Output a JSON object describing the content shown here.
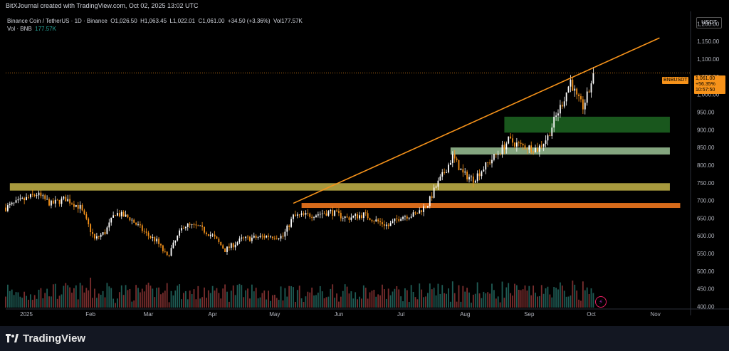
{
  "header": {
    "created_text": "BitXJournal created with TradingView.com, Oct 02, 2025 13:02 UTC"
  },
  "legend": {
    "symbol_desc": "Binance Coin / TetherUS · 1D · Binance",
    "open_label": "O",
    "open": "1,026.50",
    "high_label": "H",
    "high": "1,063.45",
    "low_label": "L",
    "low": "1,022.01",
    "close_label": "C",
    "close": "1,061.00",
    "change": "+34.50 (+3.36%)",
    "vol_label": "Vol",
    "vol": "177.57K",
    "vol_row_label": "Vol · BNB",
    "vol_row_value": "177.57K"
  },
  "currency": "USDT",
  "price_label": {
    "symbol": "BNBUSDT",
    "price": "1,061.00",
    "change_pct": "+56.35%",
    "countdown": "10:57:50"
  },
  "footer": {
    "brand": "TradingView"
  },
  "colors": {
    "up": "#26a69a",
    "down": "#ef5350",
    "trendline": "#f7931a"
  },
  "chart_data": {
    "type": "candlestick",
    "title": "",
    "ylim": [
      395,
      1235
    ],
    "y_ticks": [
      400,
      450,
      500,
      550,
      600,
      650,
      700,
      750,
      800,
      850,
      900,
      950,
      1000,
      1050,
      1100,
      1150,
      1200
    ],
    "y_tick_labels": [
      "400.00",
      "450.00",
      "500.00",
      "550.00",
      "600.00",
      "650.00",
      "700.00",
      "750.00",
      "800.00",
      "850.00",
      "900.00",
      "950.00",
      "1,000.00",
      "1,050.00",
      "1,100.00",
      "1,150.00",
      "1,200.00"
    ],
    "x_axis_labels": [
      {
        "label": "2025",
        "date": "2025-01-01"
      },
      {
        "label": "Feb",
        "date": "2025-02-01"
      },
      {
        "label": "Mar",
        "date": "2025-03-01"
      },
      {
        "label": "Apr",
        "date": "2025-04-01"
      },
      {
        "label": "May",
        "date": "2025-05-01"
      },
      {
        "label": "Jun",
        "date": "2025-06-01"
      },
      {
        "label": "Jul",
        "date": "2025-07-01"
      },
      {
        "label": "Aug",
        "date": "2025-08-01"
      },
      {
        "label": "Sep",
        "date": "2025-09-01"
      },
      {
        "label": "Oct",
        "date": "2025-10-01"
      },
      {
        "label": "Nov",
        "date": "2025-11-01"
      }
    ],
    "x_range": [
      "2024-12-22",
      "2025-11-18"
    ],
    "price_anchors": [
      [
        "2024-12-22",
        680
      ],
      [
        "2025-01-01",
        705
      ],
      [
        "2025-01-06",
        718
      ],
      [
        "2025-01-13",
        690
      ],
      [
        "2025-01-20",
        705
      ],
      [
        "2025-01-27",
        680
      ],
      [
        "2025-02-03",
        590
      ],
      [
        "2025-02-08",
        610
      ],
      [
        "2025-02-13",
        665
      ],
      [
        "2025-02-20",
        650
      ],
      [
        "2025-02-28",
        605
      ],
      [
        "2025-03-05",
        585
      ],
      [
        "2025-03-10",
        540
      ],
      [
        "2025-03-18",
        630
      ],
      [
        "2025-03-25",
        625
      ],
      [
        "2025-04-01",
        600
      ],
      [
        "2025-04-07",
        560
      ],
      [
        "2025-04-15",
        590
      ],
      [
        "2025-04-22",
        595
      ],
      [
        "2025-04-28",
        600
      ],
      [
        "2025-05-05",
        598
      ],
      [
        "2025-05-10",
        655
      ],
      [
        "2025-05-20",
        660
      ],
      [
        "2025-05-28",
        668
      ],
      [
        "2025-06-05",
        650
      ],
      [
        "2025-06-13",
        660
      ],
      [
        "2025-06-20",
        640
      ],
      [
        "2025-06-25",
        628
      ],
      [
        "2025-07-01",
        655
      ],
      [
        "2025-07-08",
        660
      ],
      [
        "2025-07-14",
        690
      ],
      [
        "2025-07-18",
        740
      ],
      [
        "2025-07-23",
        790
      ],
      [
        "2025-07-26",
        825
      ],
      [
        "2025-07-31",
        775
      ],
      [
        "2025-08-05",
        760
      ],
      [
        "2025-08-12",
        805
      ],
      [
        "2025-08-18",
        840
      ],
      [
        "2025-08-22",
        870
      ],
      [
        "2025-08-28",
        855
      ],
      [
        "2025-09-05",
        845
      ],
      [
        "2025-09-10",
        880
      ],
      [
        "2025-09-13",
        925
      ],
      [
        "2025-09-18",
        990
      ],
      [
        "2025-09-21",
        1040
      ],
      [
        "2025-09-24",
        990
      ],
      [
        "2025-09-27",
        965
      ],
      [
        "2025-09-30",
        1010
      ],
      [
        "2025-10-02",
        1061
      ]
    ],
    "zones": [
      {
        "from": "2024-12-24",
        "to": "2025-11-08",
        "low": 728,
        "high": 749,
        "color": "#b5a642"
      },
      {
        "from": "2025-05-14",
        "to": "2025-11-13",
        "low": 679,
        "high": 693,
        "color": "#e8731c"
      },
      {
        "from": "2025-07-25",
        "to": "2025-11-08",
        "low": 830,
        "high": 850,
        "color": "#8fb38a"
      },
      {
        "from": "2025-08-20",
        "to": "2025-11-08",
        "low": 892,
        "high": 937,
        "color": "#1b5e20"
      }
    ],
    "trendline": {
      "from": [
        "2025-05-10",
        692
      ],
      "to": [
        "2025-11-03",
        1160
      ]
    },
    "last_price": 1061
  }
}
